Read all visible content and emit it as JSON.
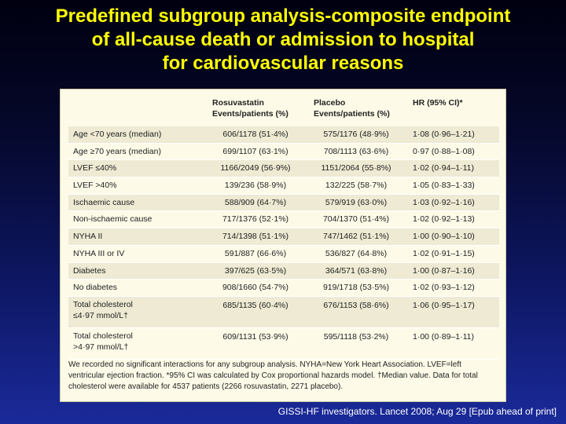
{
  "title": {
    "line1": "Predefined subgroup analysis-composite endpoint",
    "line2": "of all-cause death or admission to hospital",
    "line3": "for cardiovascular reasons"
  },
  "table": {
    "headers": {
      "rosu": [
        "Rosuvastatin",
        "Events/patients (%)"
      ],
      "placebo": [
        "Placebo",
        "Events/patients (%)"
      ],
      "hr": [
        "HR (95% CI)*"
      ]
    },
    "rows": [
      {
        "label": [
          "Age <70 years (median)"
        ],
        "rosu": "606/1178 (51·4%)",
        "placebo": "575/1176 (48·9%)",
        "hr": "1·08 (0·96–1·21)"
      },
      {
        "label": [
          "Age ≥70 years (median)"
        ],
        "rosu": "699/1107 (63·1%)",
        "placebo": "708/1113 (63·6%)",
        "hr": "0·97 (0·88–1·08)"
      },
      {
        "label": [
          "LVEF ≤40%"
        ],
        "rosu": "1166/2049 (56·9%)",
        "placebo": "1151/2064 (55·8%)",
        "hr": "1·02 (0·94–1·11)"
      },
      {
        "label": [
          "LVEF >40%"
        ],
        "rosu": "139/236 (58·9%)",
        "placebo": "132/225 (58·7%)",
        "hr": "1·05 (0·83–1·33)"
      },
      {
        "label": [
          "Ischaemic cause"
        ],
        "rosu": "588/909 (64·7%)",
        "placebo": "579/919 (63·0%)",
        "hr": "1·03 (0·92–1·16)"
      },
      {
        "label": [
          "Non-ischaemic cause"
        ],
        "rosu": "717/1376 (52·1%)",
        "placebo": "704/1370 (51·4%)",
        "hr": "1·02 (0·92–1·13)"
      },
      {
        "label": [
          "NYHA II"
        ],
        "rosu": "714/1398 (51·1%)",
        "placebo": "747/1462 (51·1%)",
        "hr": "1·00 (0·90–1·10)"
      },
      {
        "label": [
          "NYHA III or IV"
        ],
        "rosu": "591/887 (66·6%)",
        "placebo": "536/827 (64·8%)",
        "hr": "1·02 (0·91–1·15)"
      },
      {
        "label": [
          "Diabetes"
        ],
        "rosu": "397/625 (63·5%)",
        "placebo": "364/571 (63·8%)",
        "hr": "1·00 (0·87–1·16)"
      },
      {
        "label": [
          "No diabetes"
        ],
        "rosu": "908/1660 (54·7%)",
        "placebo": "919/1718 (53·5%)",
        "hr": "1·02 (0·93–1·12)"
      },
      {
        "label": [
          "Total cholesterol",
          "≤4·97 mmol/L†"
        ],
        "rosu": "685/1135 (60·4%)",
        "placebo": "676/1153 (58·6%)",
        "hr": "1·06 (0·95–1·17)"
      },
      {
        "label": [
          "Total cholesterol",
          ">4·97 mmol/L†"
        ],
        "rosu": "609/1131 (53·9%)",
        "placebo": "595/1118 (53·2%)",
        "hr": "1·00 (0·89–1·11)"
      }
    ],
    "footnote": [
      "We recorded no significant interactions for any subgroup analysis. NYHA=New York Heart Association. LVEF=left",
      "ventricular ejection fraction. *95% CI was calculated by Cox proportional hazards model. †Median value. Data for total",
      "cholesterol were available for 4537 patients (2266 rosuvastatin, 2271 placebo)."
    ]
  },
  "citation": "GISSI-HF investigators. Lancet 2008; Aug 29 [Epub ahead of print]"
}
